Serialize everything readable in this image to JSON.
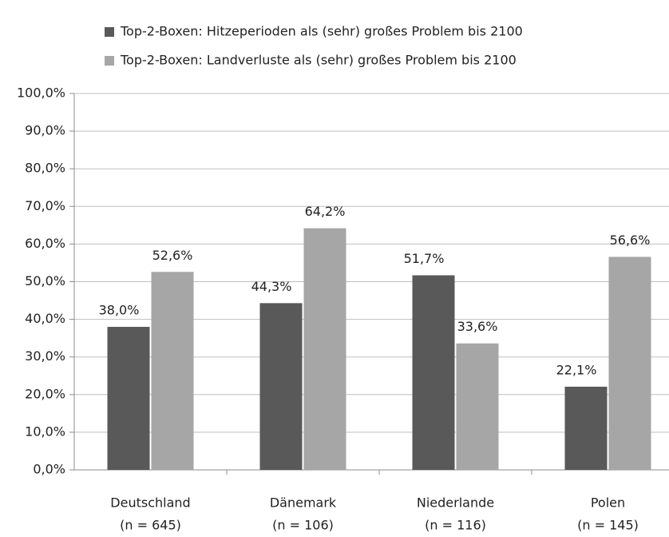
{
  "chart_data": {
    "type": "bar",
    "categories": [
      "Deutschland",
      "Dänemark",
      "Niederlande",
      "Polen"
    ],
    "category_sublabels": [
      "(n = 645)",
      "(n = 106)",
      "(n = 116)",
      "(n = 145)"
    ],
    "series": [
      {
        "name": "Top-2-Boxen: Hitzeperioden als (sehr) großes Problem bis 2100",
        "color": "#595959",
        "values": [
          38.0,
          44.3,
          51.7,
          22.1
        ],
        "value_labels": [
          "38,0%",
          "44,3%",
          "51,7%",
          "22,1%"
        ]
      },
      {
        "name": "Top-2-Boxen: Landverluste als (sehr) großes Problem bis 2100",
        "color": "#a6a6a6",
        "values": [
          52.6,
          64.2,
          33.6,
          56.6
        ],
        "value_labels": [
          "52,6%",
          "64,2%",
          "33,6%",
          "56,6%"
        ]
      }
    ],
    "ylim": [
      0,
      100
    ],
    "yticks": [
      {
        "value": 0,
        "label": "0,0%"
      },
      {
        "value": 10,
        "label": "10,0%"
      },
      {
        "value": 20,
        "label": "20,0%"
      },
      {
        "value": 30,
        "label": "30,0%"
      },
      {
        "value": 40,
        "label": "40,0%"
      },
      {
        "value": 50,
        "label": "50,0%"
      },
      {
        "value": 60,
        "label": "60,0%"
      },
      {
        "value": 70,
        "label": "70,0%"
      },
      {
        "value": 80,
        "label": "80,0%"
      },
      {
        "value": 90,
        "label": "90,0%"
      },
      {
        "value": 100,
        "label": "100,0%"
      }
    ],
    "grid": true,
    "legend": "top"
  }
}
